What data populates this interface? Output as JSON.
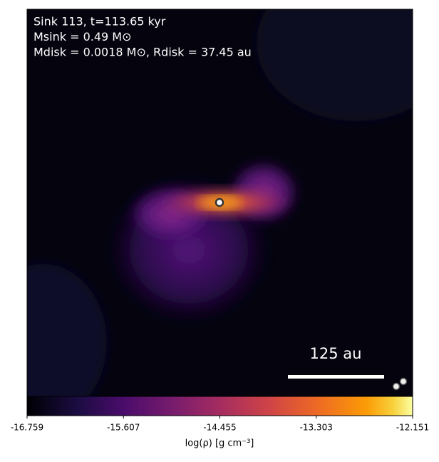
{
  "chart_data": {
    "type": "image",
    "annotations": [
      "Sink 113, t=113.65 kyr",
      "Msink = 0.49 M⊙",
      "Mdisk = 0.0018 M⊙, Rdisk = 37.45 au"
    ],
    "scale_bar_label": "125 au",
    "colorbar": {
      "label": "log(ρ) [g cm⁻³]",
      "lim": [
        -16.759,
        -12.151
      ],
      "ticks": [
        -16.759,
        -15.607,
        -14.455,
        -13.303,
        -12.151
      ]
    }
  }
}
